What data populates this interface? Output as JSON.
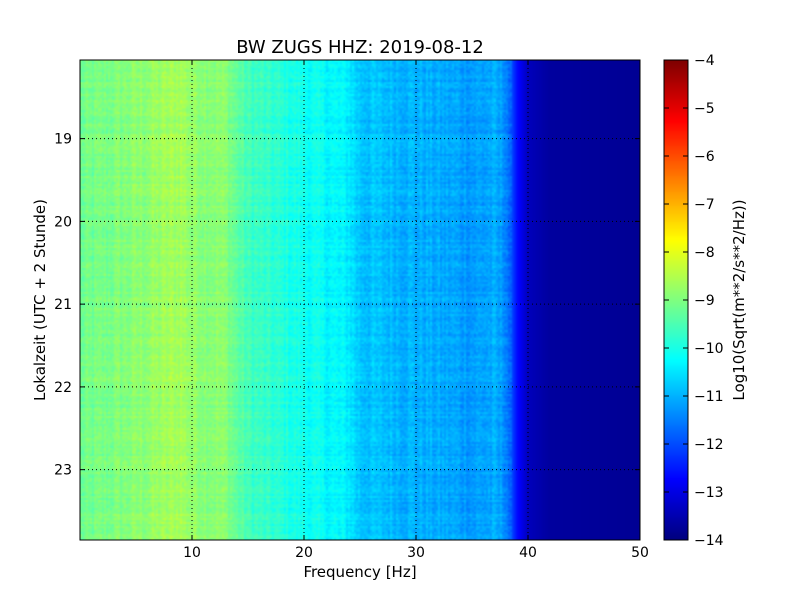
{
  "chart_data": {
    "type": "heatmap",
    "title": "BW ZUGS HHZ: 2019-08-12",
    "xlabel": "Frequency [Hz]",
    "ylabel": "Lokalzeit (UTC + 2 Stunde)",
    "xlim": [
      0,
      50
    ],
    "ylim": [
      18.05,
      23.85
    ],
    "y_inverted": true,
    "x_ticks": [
      10,
      20,
      30,
      40,
      50
    ],
    "y_ticks": [
      19,
      20,
      21,
      22,
      23
    ],
    "grid": true,
    "colormap": "jet",
    "colorbar": {
      "label": "Log10(Sqrt(m**2/s**2/Hz))",
      "range": [
        -14,
        -4
      ],
      "ticks": [
        -4,
        -5,
        -6,
        -7,
        -8,
        -9,
        -10,
        -11,
        -12,
        -13,
        -14
      ]
    },
    "spectrum_profile": {
      "frequency_hz": [
        0,
        5,
        9,
        10,
        13,
        14,
        15,
        20,
        24,
        25,
        30,
        35,
        37,
        38,
        39,
        40,
        42,
        50
      ],
      "log10_amplitude": [
        -9.2,
        -8.9,
        -8.6,
        -8.8,
        -8.9,
        -9.3,
        -9.6,
        -10.1,
        -10.4,
        -10.8,
        -11.0,
        -11.2,
        -11.1,
        -11.3,
        -12.6,
        -13.4,
        -13.7,
        -13.8
      ]
    }
  }
}
